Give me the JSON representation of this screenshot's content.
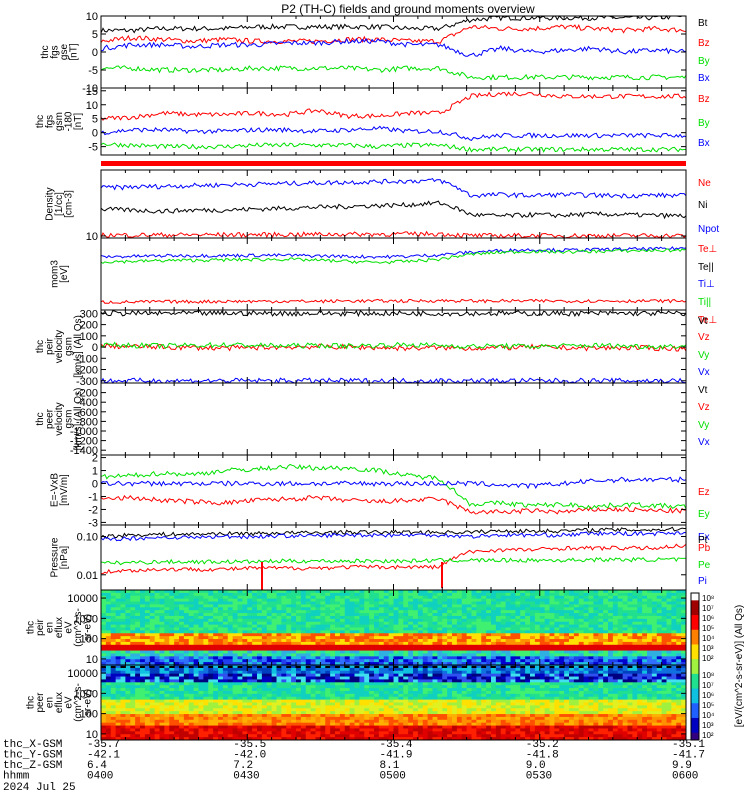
{
  "title": "P2 (TH-C) fields and ground moments overview",
  "date_label": "2024 Jul 25",
  "x_axis": {
    "times": [
      "0400",
      "0430",
      "0500",
      "0530",
      "0600"
    ],
    "row_labels": [
      "thc_X-GSM",
      "thc_Y-GSM",
      "thc_Z-GSM",
      "hhmm"
    ],
    "rows": [
      [
        "-35.7",
        "-35.5",
        "-35.4",
        "-35.2",
        "-35.1"
      ],
      [
        "-42.1",
        "-42.0",
        "-41.9",
        "-41.8",
        "-41.7"
      ],
      [
        "6.4",
        "7.2",
        "8.1",
        "9.0",
        "9.9"
      ],
      [
        "0400",
        "0430",
        "0500",
        "0530",
        "0600"
      ]
    ]
  },
  "colorbar": {
    "label": "[eV/(cm^2-s-sr-eV)] (All Qs)",
    "ticks": [
      "10⁸",
      "10⁷",
      "10⁶",
      "10⁵",
      "10⁴",
      "10³",
      "10²"
    ],
    "ticks2": [
      "10⁸",
      "10⁷",
      "10⁶",
      "10⁵",
      "10⁴",
      "10³",
      "10²"
    ]
  },
  "colors": {
    "black": "#000000",
    "red": "#ff0000",
    "green": "#00e000",
    "blue": "#0000ff"
  },
  "chart_data": [
    {
      "type": "line",
      "id": "fgs",
      "ylabel": [
        "thc",
        "fgs",
        "gse",
        "[nT]"
      ],
      "ylim": [
        -10,
        10
      ],
      "ticks": [
        10,
        5,
        0,
        -5,
        -10
      ],
      "series": [
        {
          "name": "Bt",
          "color": "#000000",
          "values": [
            6,
            6,
            6.5,
            6.5,
            6.5,
            7,
            7,
            7,
            7,
            7,
            6.5,
            6.5,
            9,
            9.5,
            9.5,
            9.5,
            9.5,
            9.5,
            9.5,
            10
          ]
        },
        {
          "name": "Bz",
          "color": "#ff0000",
          "values": [
            3,
            4,
            3.5,
            3,
            3.5,
            3,
            3,
            3,
            3.5,
            3.5,
            3,
            3,
            7,
            6.5,
            6.5,
            7,
            6.5,
            6,
            6.5,
            6
          ]
        },
        {
          "name": "By",
          "color": "#00e000",
          "values": [
            -4.5,
            -4.5,
            -5,
            -5,
            -5,
            -4.5,
            -4.5,
            -4.5,
            -4.5,
            -5,
            -4.5,
            -4.5,
            -7,
            -7,
            -7,
            -7,
            -7,
            -7,
            -7,
            -7
          ]
        },
        {
          "name": "Bx",
          "color": "#0000ff",
          "values": [
            1,
            2,
            2,
            1.5,
            2,
            2,
            2.5,
            2.5,
            3,
            3,
            2,
            2,
            -1,
            1,
            0,
            0.5,
            1,
            0,
            0.5,
            0
          ]
        }
      ]
    },
    {
      "type": "line",
      "id": "fgs_gsm",
      "ylabel": [
        "thc",
        "fgs",
        "gsm",
        "-180",
        "[nT]"
      ],
      "ylim": [
        -8,
        16
      ],
      "ticks": [
        15,
        10,
        5,
        0,
        -5
      ],
      "series": [
        {
          "name": "Bz",
          "color": "#ff0000",
          "values": [
            5,
            5.5,
            7,
            6.5,
            6.5,
            7,
            6.5,
            8,
            6,
            6,
            7,
            7,
            13,
            14,
            14,
            13,
            13,
            13,
            13,
            13
          ]
        },
        {
          "name": "By",
          "color": "#00e000",
          "values": [
            -4,
            -4.5,
            -5,
            -5,
            -5,
            -4.5,
            -4.5,
            -4.5,
            -4.5,
            -5,
            -4.5,
            -4.5,
            -6,
            -6,
            -6,
            -6,
            -6,
            -6,
            -6,
            -6
          ]
        },
        {
          "name": "Bx",
          "color": "#0000ff",
          "values": [
            0,
            1,
            1,
            0.5,
            0.5,
            1,
            1,
            0.5,
            1,
            1.5,
            0.5,
            0.5,
            -2,
            -1,
            -1,
            -1,
            -1,
            -1,
            -1,
            -1
          ]
        }
      ]
    },
    {
      "type": "line",
      "id": "density",
      "log": true,
      "ylabel": [
        "Density",
        "[1/cc]",
        "[cm-3]"
      ],
      "ylim": [
        9,
        300
      ],
      "ticks": [
        10
      ],
      "series": [
        {
          "name": "Ne",
          "color": "#ff0000",
          "values": []
        },
        {
          "name": "Ni",
          "color": "#000000",
          "values": [
            40,
            38,
            36,
            38,
            38,
            40,
            42,
            44,
            46,
            48,
            50,
            55,
            30,
            28,
            30,
            29,
            31,
            30,
            29,
            28
          ]
        },
        {
          "name": "Npot",
          "color": "#0000ff",
          "values": [
            120,
            125,
            130,
            135,
            140,
            145,
            150,
            155,
            160,
            165,
            170,
            175,
            80,
            85,
            80,
            85,
            82,
            80,
            82,
            80
          ]
        },
        {
          "name": "Te⊥",
          "color": "#ff0000",
          "values": [
            10.5,
            10.5,
            10.6,
            10.6,
            10.7,
            10.7,
            10.8,
            10.9,
            11,
            11,
            11.1,
            11.2,
            10.2,
            10.2,
            10.2,
            10.2,
            10.2,
            10.2,
            10.2,
            10.2
          ]
        }
      ]
    },
    {
      "type": "line",
      "id": "temp",
      "log": true,
      "ylabel": [
        "mom3",
        "[eV]"
      ],
      "ylim": [
        100,
        20000
      ],
      "ticks": [],
      "series": [
        {
          "name": "Te||",
          "color": "#000000",
          "values": []
        },
        {
          "name": "Ti⊥",
          "color": "#0000ff",
          "values": [
            5000,
            5200,
            5400,
            5500,
            5500,
            5600,
            5600,
            5400,
            5200,
            5000,
            5200,
            5800,
            7000,
            8000,
            8500,
            8200,
            8500,
            8800,
            9000,
            9500
          ]
        },
        {
          "name": "Ti||",
          "color": "#00e000",
          "values": [
            3500,
            3600,
            3800,
            3900,
            4000,
            4100,
            4200,
            3900,
            3600,
            3300,
            3600,
            4200,
            6000,
            7000,
            7500,
            7200,
            7500,
            7800,
            8000,
            8200
          ]
        },
        {
          "name": "Te⊥",
          "color": "#ff0000",
          "values": [
            180,
            180,
            185,
            185,
            190,
            190,
            190,
            190,
            195,
            195,
            195,
            200,
            195,
            195,
            195,
            195,
            195,
            195,
            195,
            195
          ]
        }
      ]
    },
    {
      "type": "line",
      "id": "peir_vel",
      "ylabel": [
        "thc",
        "peir",
        "velocity",
        "gsm",
        "[km/s] (All Qs)"
      ],
      "ylim": [
        -320,
        330
      ],
      "ticks": [
        300,
        200,
        100,
        0,
        -100,
        -200,
        -300
      ],
      "series": [
        {
          "name": "Vt",
          "color": "#000000",
          "values": [
            300,
            300,
            300,
            300,
            300,
            300,
            300,
            300,
            300,
            300,
            300,
            300,
            300,
            300,
            300,
            300,
            300,
            300,
            300,
            300
          ]
        },
        {
          "name": "Vz",
          "color": "#ff0000",
          "values": [
            10,
            5,
            0,
            -5,
            -10,
            -5,
            0,
            5,
            0,
            -5,
            -10,
            -5,
            -10,
            -5,
            0,
            -5,
            -10,
            -5,
            -10,
            -15
          ]
        },
        {
          "name": "Vy",
          "color": "#00e000",
          "values": [
            20,
            15,
            10,
            15,
            20,
            15,
            10,
            15,
            10,
            15,
            20,
            15,
            5,
            10,
            5,
            10,
            15,
            10,
            5,
            10
          ]
        },
        {
          "name": "Vx",
          "color": "#0000ff",
          "values": [
            -300,
            -300,
            -300,
            -300,
            -300,
            -300,
            -300,
            -300,
            -300,
            -300,
            -300,
            -300,
            -300,
            -300,
            -300,
            -300,
            -300,
            -300,
            -300,
            -300
          ]
        }
      ]
    },
    {
      "type": "line",
      "id": "peer_vel",
      "ylabel": [
        "thc",
        "peer",
        "velocity",
        "gsm",
        "[km/s] (All Qs)"
      ],
      "ylim": [
        -1500,
        0
      ],
      "ticks": [
        -200,
        -400,
        -600,
        -800,
        -1000,
        -1200,
        -1400
      ],
      "series": [
        {
          "name": "Vt",
          "color": "#000000",
          "values": []
        },
        {
          "name": "Vz",
          "color": "#ff0000",
          "values": []
        },
        {
          "name": "Vy",
          "color": "#00e000",
          "values": []
        },
        {
          "name": "Vx",
          "color": "#0000ff",
          "values": []
        }
      ]
    },
    {
      "type": "line",
      "id": "efield",
      "ylabel": [
        "E=-VxB",
        "[mV/m]"
      ],
      "ylim": [
        -3.2,
        2.2
      ],
      "ticks": [
        2,
        1,
        0,
        -1,
        -2,
        -3
      ],
      "series": [
        {
          "name": "Ez",
          "color": "#ff0000",
          "values": [
            -1.2,
            -1.1,
            -1.3,
            -1.4,
            -1.5,
            -1.3,
            -1.2,
            -1.1,
            -1.3,
            -1.4,
            -1.3,
            -1.2,
            -2.2,
            -2.2,
            -2.1,
            -2.2,
            -2.0,
            -2.0,
            -2.1,
            -2.1
          ]
        },
        {
          "name": "Ey",
          "color": "#00e000",
          "values": [
            0.5,
            0.6,
            0.8,
            0.7,
            1.0,
            1.1,
            1.3,
            1.2,
            1.2,
            1.0,
            0.6,
            0.4,
            -1.6,
            -1.5,
            -1.7,
            -1.6,
            -1.8,
            -1.6,
            -1.7,
            -1.8
          ]
        },
        {
          "name": "Ex",
          "color": "#0000ff",
          "values": [
            0,
            0,
            0,
            0,
            0,
            0,
            0,
            0,
            0,
            0,
            0,
            0,
            0,
            -0.1,
            -0.2,
            0,
            0.2,
            0.3,
            0.3,
            0.3
          ]
        }
      ]
    },
    {
      "type": "line",
      "id": "pressure",
      "log": true,
      "ylabel": [
        "Pressure",
        "[nPa]"
      ],
      "ylim": [
        0.004,
        0.2
      ],
      "ticks": [
        0.1,
        0.01
      ],
      "tick_labels": [
        "0.10",
        "0.01"
      ],
      "series": [
        {
          "name": "Pt",
          "color": "#000000",
          "values": [
            0.1,
            0.11,
            0.115,
            0.115,
            0.12,
            0.12,
            0.125,
            0.125,
            0.13,
            0.13,
            0.13,
            0.13,
            0.13,
            0.14,
            0.14,
            0.14,
            0.15,
            0.15,
            0.15,
            0.16
          ]
        },
        {
          "name": "Pb",
          "color": "#ff0000",
          "values": [
            0.012,
            0.013,
            0.014,
            0.014,
            0.014,
            0.015,
            0.015,
            0.015,
            0.016,
            0.016,
            0.016,
            0.016,
            0.04,
            0.045,
            0.045,
            0.05,
            0.05,
            0.05,
            0.05,
            0.06
          ]
        },
        {
          "name": "Pe",
          "color": "#00e000",
          "values": [
            0.02,
            0.021,
            0.022,
            0.022,
            0.022,
            0.022,
            0.023,
            0.023,
            0.023,
            0.023,
            0.023,
            0.024,
            0.024,
            0.024,
            0.024,
            0.024,
            0.025,
            0.025,
            0.025,
            0.025
          ]
        },
        {
          "name": "Pi",
          "color": "#0000ff",
          "values": [
            0.085,
            0.09,
            0.095,
            0.095,
            0.1,
            0.1,
            0.105,
            0.105,
            0.11,
            0.11,
            0.11,
            0.11,
            0.1,
            0.11,
            0.11,
            0.11,
            0.12,
            0.12,
            0.12,
            0.13
          ]
        }
      ]
    },
    {
      "type": "heatmap",
      "id": "peir_spec",
      "log": true,
      "ylabel": [
        "thc",
        "peir",
        "en",
        "eflux",
        "eV",
        "(cm^2-s-",
        "sr-eV)"
      ],
      "ylim": [
        5,
        25000
      ],
      "ticks": [
        10000,
        1000,
        100,
        10
      ],
      "tick_labels": [
        "10000",
        "1000",
        "100",
        "10"
      ]
    },
    {
      "type": "heatmap",
      "id": "peer_spec",
      "log": true,
      "ylabel": [
        "thc",
        "peer",
        "en",
        "eflux",
        "eV",
        "(cm^2-s-",
        "sr-eV)"
      ],
      "ylim": [
        5,
        25000
      ],
      "ticks": [
        10000,
        1000,
        100,
        10
      ],
      "tick_labels": [
        "10000",
        "1000",
        "100",
        "10"
      ]
    }
  ]
}
